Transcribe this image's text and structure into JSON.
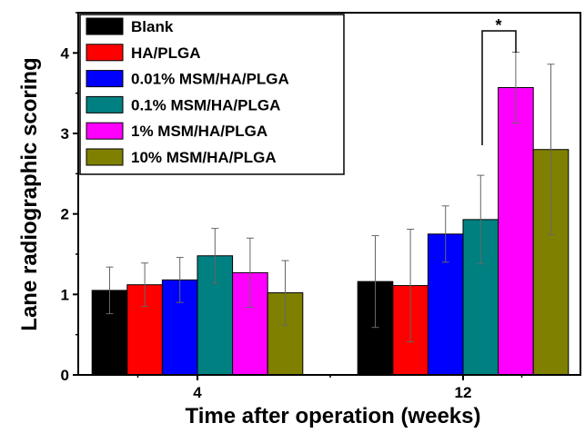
{
  "chart_data": {
    "type": "bar",
    "xlabel": "Time after operation (weeks)",
    "ylabel": "Lane radiographic scoring",
    "ylim": [
      0,
      4.5
    ],
    "yticks": [
      "0",
      "1",
      "2",
      "3",
      "4"
    ],
    "categories": [
      "4",
      "12"
    ],
    "legend_position": "top-left",
    "series": [
      {
        "name": "Blank",
        "color": "#000000",
        "values": [
          1.05,
          1.16
        ],
        "errors": [
          0.29,
          0.57
        ]
      },
      {
        "name": "HA/PLGA",
        "color": "#ff0000",
        "values": [
          1.12,
          1.11
        ],
        "errors": [
          0.27,
          0.7
        ]
      },
      {
        "name": "0.01% MSM/HA/PLGA",
        "color": "#0000ff",
        "values": [
          1.18,
          1.75
        ],
        "errors": [
          0.28,
          0.35
        ]
      },
      {
        "name": "0.1% MSM/HA/PLGA",
        "color": "#008080",
        "values": [
          1.48,
          1.93
        ],
        "errors": [
          0.34,
          0.55
        ]
      },
      {
        "name": "1% MSM/HA/PLGA",
        "color": "#ff00ff",
        "values": [
          1.27,
          3.57
        ],
        "errors": [
          0.43,
          0.44
        ]
      },
      {
        "name": "10% MSM/HA/PLGA",
        "color": "#808000",
        "values": [
          1.02,
          2.8
        ],
        "errors": [
          0.4,
          1.06
        ]
      }
    ],
    "annotation": {
      "text": "*"
    }
  }
}
